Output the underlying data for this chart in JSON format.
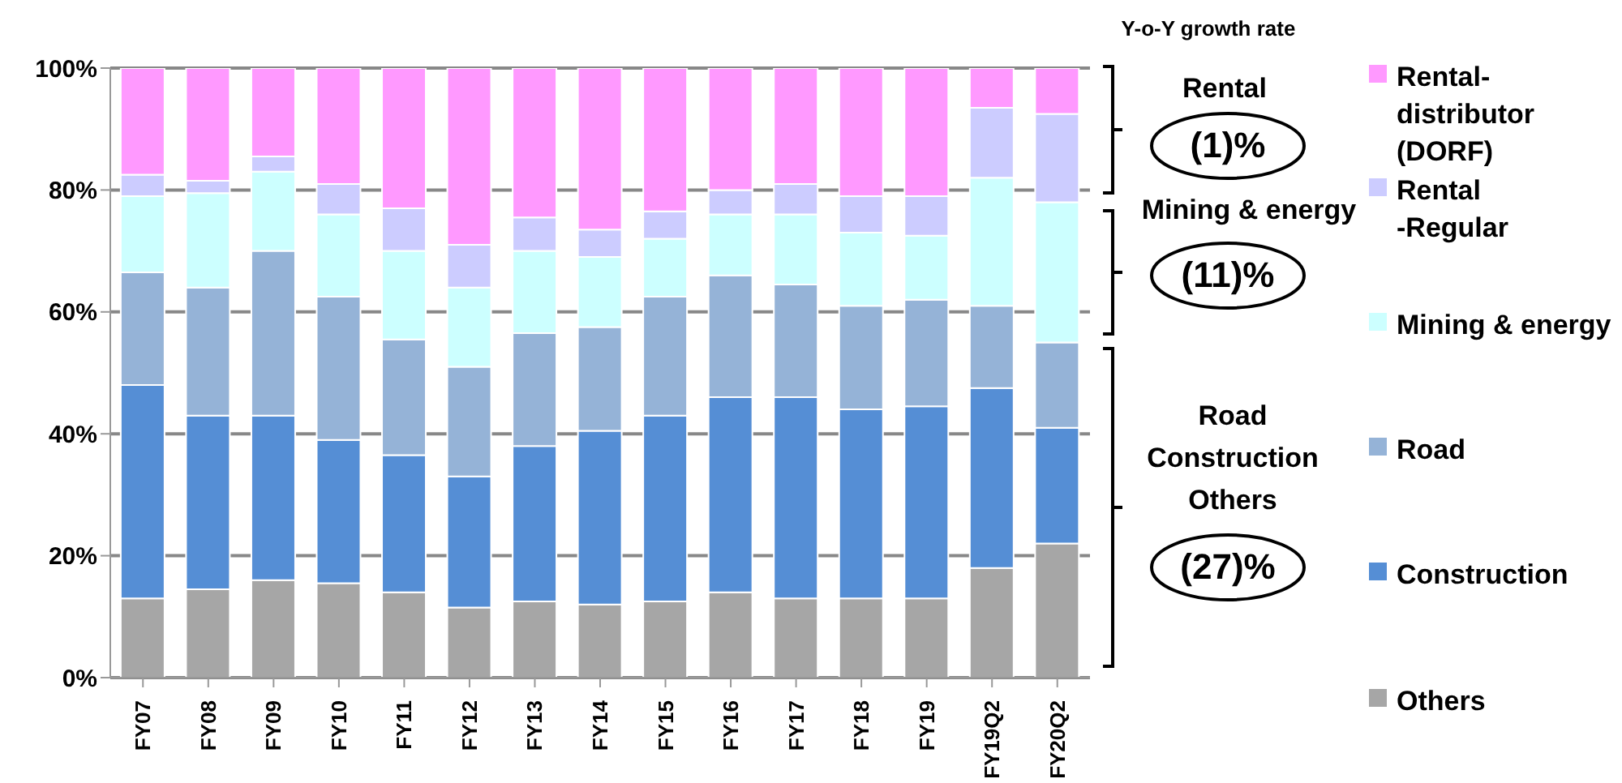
{
  "chart_data": {
    "type": "bar",
    "stacked": true,
    "categories": [
      "FY07",
      "FY08",
      "FY09",
      "FY10",
      "FY11",
      "FY12",
      "FY13",
      "FY14",
      "FY15",
      "FY16",
      "FY17",
      "FY18",
      "FY19",
      "FY19Q2",
      "FY20Q2"
    ],
    "series": [
      {
        "name": "Others",
        "color": "#a6a6a6",
        "values": [
          13,
          14.5,
          16,
          15.5,
          14,
          11.5,
          12.5,
          12,
          12.5,
          14,
          13,
          13,
          13,
          18,
          22
        ]
      },
      {
        "name": "Construction",
        "color": "#558ed5",
        "values": [
          35,
          28.5,
          27,
          23.5,
          22.5,
          21.5,
          25.5,
          28.5,
          30.5,
          32,
          33,
          31,
          31.5,
          29.5,
          19
        ]
      },
      {
        "name": "Road",
        "color": "#95b3d7",
        "values": [
          18.5,
          21,
          27,
          23.5,
          19,
          18,
          18.5,
          17,
          19.5,
          20,
          18.5,
          17,
          17.5,
          13.5,
          14
        ]
      },
      {
        "name": "Mining & energy",
        "color": "#ccffff",
        "values": [
          12.5,
          15.5,
          13,
          13.5,
          14.5,
          13,
          13.5,
          11.5,
          9.5,
          10,
          11.5,
          12,
          10.5,
          21,
          23
        ]
      },
      {
        "name": "Rental\n-Regular",
        "color": "#ccccff",
        "values": [
          3.5,
          2,
          2.5,
          5,
          7,
          7,
          5.5,
          4.5,
          4.5,
          4,
          5,
          6,
          6.5,
          11.5,
          14.5
        ]
      },
      {
        "name": "Rental-\ndistributor\n(DORF)",
        "color": "#ff99ff",
        "values": [
          17.5,
          18.5,
          14.5,
          19,
          23,
          29,
          24.5,
          26.5,
          23.5,
          20,
          19,
          21,
          21,
          6.5,
          7.5
        ]
      }
    ],
    "ylim": [
      0,
      100
    ],
    "yticks": [
      {
        "value": 0,
        "label": "0%"
      },
      {
        "value": 20,
        "label": "20%"
      },
      {
        "value": 40,
        "label": "40%"
      },
      {
        "value": 60,
        "label": "60%"
      },
      {
        "value": 80,
        "label": "80%"
      },
      {
        "value": 100,
        "label": "100%"
      }
    ],
    "grid": "y",
    "legend": "right",
    "annotations": [
      "Y-o-Y growth rate",
      "Rental",
      "(1)%",
      "Mining & energy",
      "(11)%",
      "Road",
      "Construction",
      "Others",
      "(27)%"
    ]
  }
}
